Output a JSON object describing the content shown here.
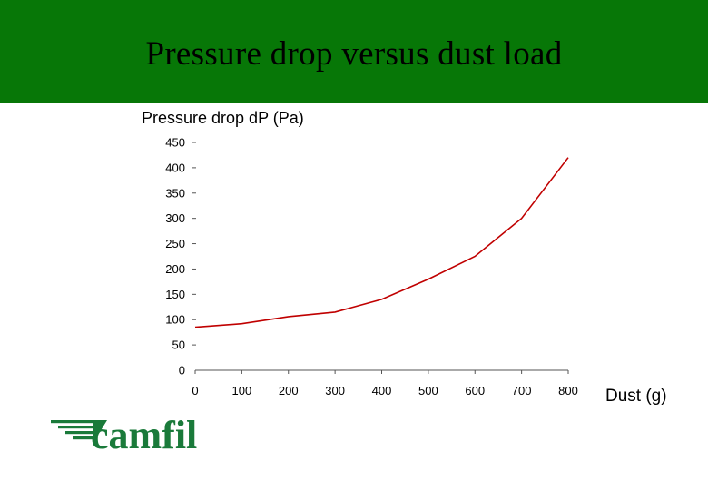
{
  "slide": {
    "title": "Pressure drop versus dust load",
    "header_color": "#077707"
  },
  "logo": {
    "text": "camfil",
    "color": "#1a7a3a"
  },
  "chart_data": {
    "type": "line",
    "ylabel": "Pressure drop dP (Pa)",
    "xlabel": "Dust (g)",
    "xlim": [
      0,
      800
    ],
    "ylim": [
      0,
      450
    ],
    "xticks": [
      0,
      100,
      200,
      300,
      400,
      500,
      600,
      700,
      800
    ],
    "yticks": [
      0,
      50,
      100,
      150,
      200,
      250,
      300,
      350,
      400,
      450
    ],
    "grid": false,
    "series": [
      {
        "color": "#c00000",
        "x": [
          0,
          100,
          200,
          300,
          400,
          500,
          600,
          700,
          800
        ],
        "y": [
          85,
          92,
          106,
          115,
          140,
          180,
          225,
          300,
          420
        ]
      }
    ]
  }
}
